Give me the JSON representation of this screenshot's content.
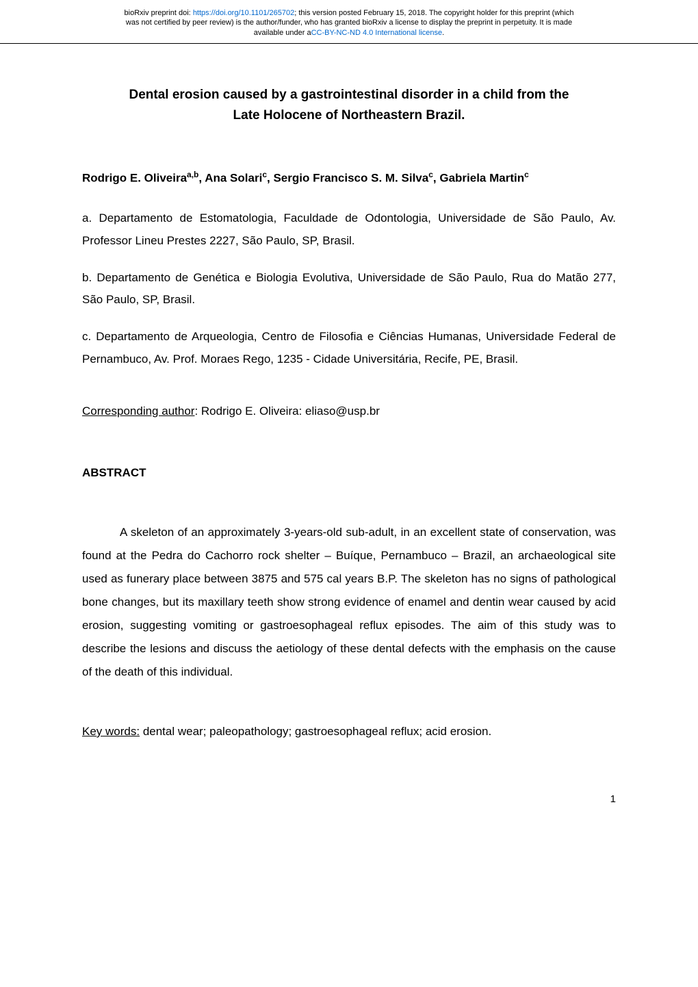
{
  "preprint_header": {
    "line1_prefix": "bioRxiv preprint doi: ",
    "doi_url": "https://doi.org/10.1101/265702",
    "line1_suffix": "; this version posted February 15, 2018. The copyright holder for this preprint (which",
    "line2": "was not certified by peer review) is the author/funder, who has granted bioRxiv a license to display the preprint in perpetuity. It is made",
    "line3_prefix": "available under a",
    "license_text": "CC-BY-NC-ND 4.0 International license",
    "line3_suffix": "."
  },
  "title": {
    "line1": "Dental erosion caused by a gastrointestinal disorder in a child from the",
    "line2": "Late Holocene of Northeastern Brazil."
  },
  "authors": {
    "a1_name": "Rodrigo E. Oliveira",
    "a1_sup": "a,b",
    "a2_name": "Ana Solari",
    "a2_sup": "c",
    "a3_name": "Sergio Francisco S. M. Silva",
    "a3_sup": "c",
    "a4_name": "Gabriela Martin",
    "a4_sup": "c"
  },
  "affiliations": {
    "a": "a. Departamento de Estomatologia, Faculdade de Odontologia, Universidade de São Paulo, Av. Professor Lineu Prestes 2227, São Paulo, SP, Brasil.",
    "b": "b. Departamento de Genética e Biologia Evolutiva, Universidade de São Paulo, Rua do Matão 277, São Paulo, SP, Brasil.",
    "c": "c. Departamento de Arqueologia, Centro de Filosofia e Ciências Humanas, Universidade Federal de Pernambuco, Av. Prof. Moraes Rego, 1235 - Cidade Universitária, Recife, PE, Brasil."
  },
  "correspondence": {
    "label": "Corresponding author",
    "text": ": Rodrigo E. Oliveira: eliaso@usp.br"
  },
  "abstract": {
    "heading": "ABSTRACT",
    "body": "A skeleton of an approximately 3-years-old sub-adult, in an excellent state of conservation, was found at the Pedra do Cachorro rock shelter – Buíque, Pernambuco – Brazil, an archaeological site used as funerary place between 3875 and 575 cal years B.P. The skeleton has no signs of pathological bone changes, but its maxillary teeth show strong evidence of enamel and dentin wear caused by acid erosion, suggesting vomiting or gastroesophageal reflux episodes. The aim of this study was to describe the lesions and discuss the aetiology of these dental defects with the emphasis on the cause of the death of this individual."
  },
  "keywords": {
    "label": "Key words:",
    "text": " dental wear; paleopathology; gastroesophageal reflux; acid erosion."
  },
  "page_number": "1",
  "colors": {
    "link": "#0066cc",
    "text": "#000000",
    "background": "#ffffff"
  },
  "typography": {
    "body_fontsize": 17,
    "header_fontsize": 11,
    "title_fontsize": 19,
    "line_height_body": 2.0,
    "font_family": "Arial"
  }
}
